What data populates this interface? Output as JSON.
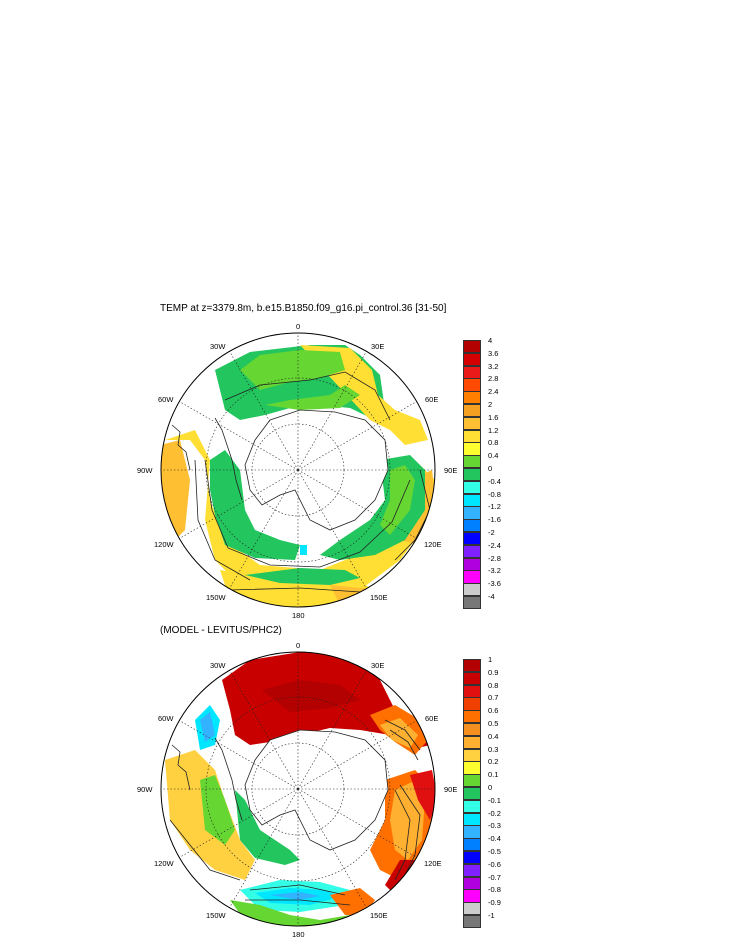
{
  "panels": [
    {
      "title": "TEMP at z=3379.8m, b.e15.B1850.f09_g16.pi_control.36 [31-50]",
      "lon_labels": [
        "0",
        "30E",
        "60E",
        "90E",
        "120E",
        "150E",
        "180",
        "150W",
        "120W",
        "90W",
        "60W",
        "30W"
      ],
      "colorbar": {
        "ticks": [
          "4",
          "3.6",
          "3.2",
          "2.8",
          "2.4",
          "2",
          "1.6",
          "1.2",
          "0.8",
          "0.4",
          "0",
          "-0.4",
          "-0.8",
          "-1.2",
          "-1.6",
          "-2",
          "-2.4",
          "-2.8",
          "-3.2",
          "-3.6",
          "-4"
        ],
        "colors": [
          "#b30000",
          "#d40000",
          "#ea1a1a",
          "#ff4a00",
          "#ff8000",
          "#f5a020",
          "#ffbf33",
          "#ffdf33",
          "#ffff30",
          "#66d633",
          "#22c55e",
          "#33ffe6",
          "#00e6ff",
          "#33b3ff",
          "#0080ff",
          "#0000ff",
          "#8020ff",
          "#b000e0",
          "#ff00ff",
          "#cccccc",
          "#777777"
        ]
      }
    },
    {
      "title": "(MODEL - LEVITUS/PHC2)",
      "lon_labels": [
        "0",
        "30E",
        "60E",
        "90E",
        "120E",
        "150E",
        "180",
        "150W",
        "120W",
        "90W",
        "60W",
        "30W"
      ],
      "colorbar": {
        "ticks": [
          "1",
          "0.9",
          "0.8",
          "0.7",
          "0.6",
          "0.5",
          "0.4",
          "0.3",
          "0.2",
          "0.1",
          "0",
          "-0.1",
          "-0.2",
          "-0.3",
          "-0.4",
          "-0.5",
          "-0.6",
          "-0.7",
          "-0.8",
          "-0.9",
          "-1"
        ],
        "colors": [
          "#b30000",
          "#c80000",
          "#e01010",
          "#f04000",
          "#ff7000",
          "#f59020",
          "#ffb030",
          "#ffd040",
          "#ffff30",
          "#66d633",
          "#22c55e",
          "#33ffe6",
          "#00e6ff",
          "#33b3ff",
          "#0080ff",
          "#0000ff",
          "#8020ff",
          "#b000e0",
          "#ff00ff",
          "#cccccc",
          "#777777"
        ]
      }
    }
  ]
}
